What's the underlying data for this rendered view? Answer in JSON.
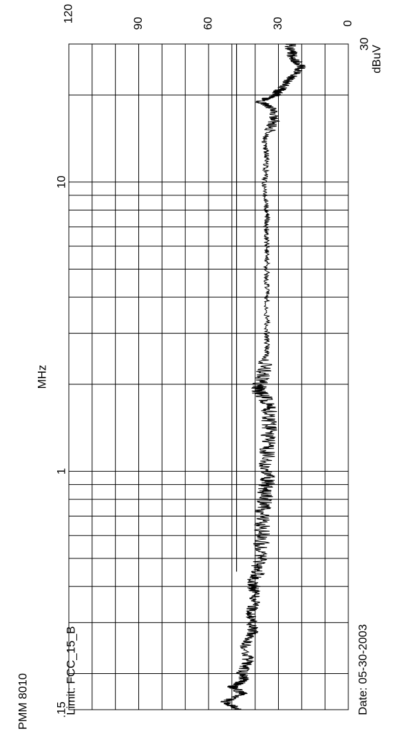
{
  "header": {
    "device": "PMM 8010",
    "limit": "Limit: FCC_15_B",
    "date": "Date: 05-30-2003"
  },
  "chart_data": {
    "type": "line",
    "orientation": "rotated 90° clockwise (frequency runs along the vertical, level along the horizontal)",
    "x_scale": "log",
    "xlabel": "MHz",
    "ylabel": "dBuV",
    "xlim": [
      0.15,
      30
    ],
    "ylim": [
      0,
      120
    ],
    "x_ticks": [
      ".15",
      "1",
      "10",
      "30"
    ],
    "y_ticks": [
      "0",
      "30",
      "60",
      "90",
      "120"
    ],
    "grid": true,
    "limit_line": {
      "name": "FCC_15_B",
      "points": [
        [
          0.45,
          48
        ],
        [
          30,
          48
        ]
      ]
    },
    "series": [
      {
        "values": [
          [
            0.15,
            47
          ],
          [
            0.16,
            53
          ],
          [
            0.17,
            45
          ],
          [
            0.18,
            50
          ],
          [
            0.19,
            44
          ],
          [
            0.2,
            46
          ],
          [
            0.22,
            43
          ],
          [
            0.25,
            44
          ],
          [
            0.28,
            41
          ],
          [
            0.32,
            42
          ],
          [
            0.36,
            40
          ],
          [
            0.4,
            41
          ],
          [
            0.45,
            39
          ],
          [
            0.5,
            38
          ],
          [
            0.6,
            37
          ],
          [
            0.7,
            37
          ],
          [
            0.8,
            36
          ],
          [
            0.9,
            35
          ],
          [
            1.0,
            35
          ],
          [
            1.2,
            35
          ],
          [
            1.4,
            34
          ],
          [
            1.6,
            34
          ],
          [
            1.8,
            36
          ],
          [
            1.9,
            39
          ],
          [
            2.1,
            37
          ],
          [
            2.5,
            35
          ],
          [
            3.0,
            35
          ],
          [
            4.0,
            35
          ],
          [
            5.0,
            35
          ],
          [
            6.0,
            35
          ],
          [
            7.0,
            35
          ],
          [
            8.0,
            35
          ],
          [
            10.0,
            36
          ],
          [
            12.0,
            35
          ],
          [
            14.0,
            36
          ],
          [
            16.0,
            32
          ],
          [
            18.0,
            33
          ],
          [
            19.0,
            38
          ],
          [
            20.0,
            31
          ],
          [
            21.0,
            29
          ],
          [
            23.0,
            24
          ],
          [
            25.0,
            20
          ],
          [
            27.0,
            24
          ],
          [
            30.0,
            25
          ]
        ]
      }
    ]
  }
}
